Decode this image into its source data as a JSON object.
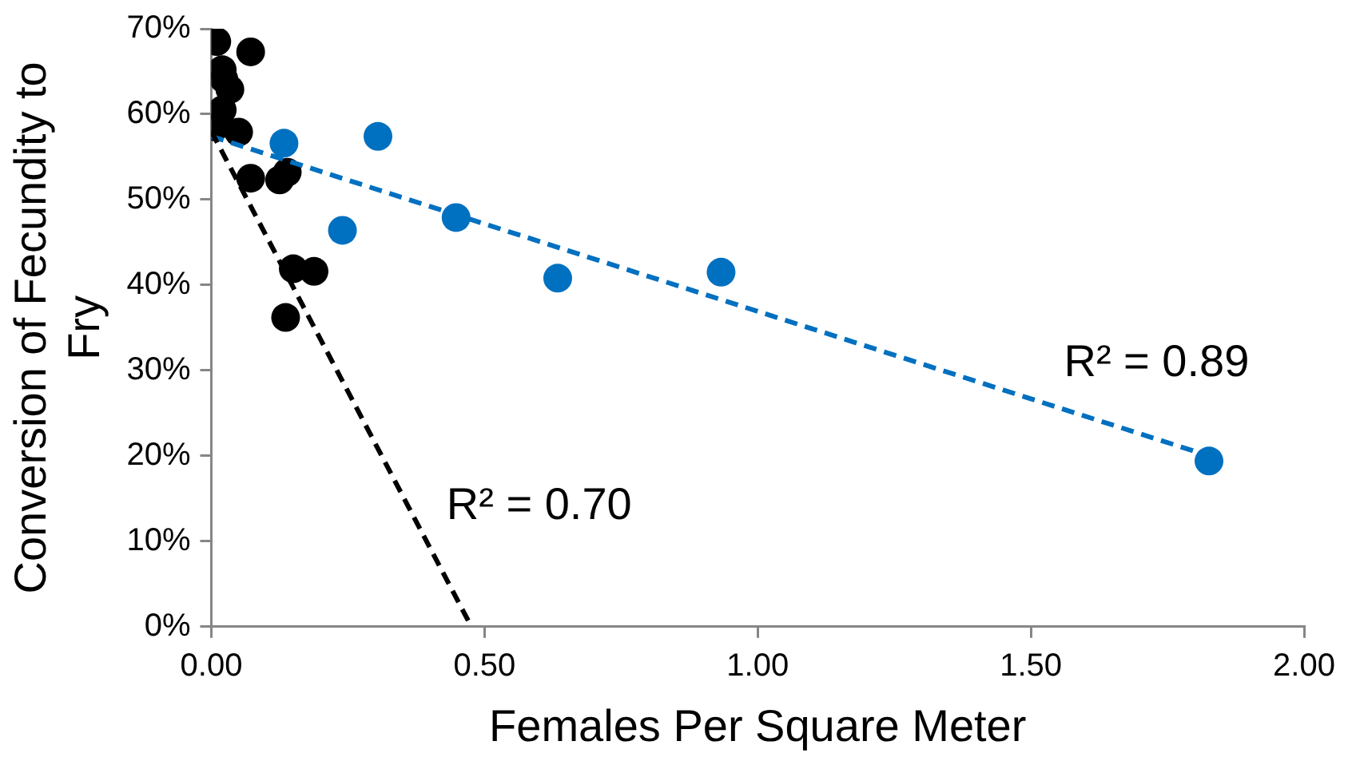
{
  "chart_data": {
    "type": "scatter",
    "xlabel": "Females Per Square Meter",
    "ylabel": "Conversion of Fecundity to Fry",
    "marker": "circle",
    "xlim": [
      0,
      2
    ],
    "xticks": [
      {
        "value": 0,
        "label": "0.00"
      },
      {
        "value": 0.5,
        "label": "0.50"
      },
      {
        "value": 1,
        "label": "1.00"
      },
      {
        "value": 1.5,
        "label": "1.50"
      },
      {
        "value": 2,
        "label": "2.00"
      }
    ],
    "ylim": [
      0,
      70
    ],
    "yticks": [
      {
        "value": 0,
        "label": "0%"
      },
      {
        "value": 10,
        "label": "10%"
      },
      {
        "value": 20,
        "label": "20%"
      },
      {
        "value": 30,
        "label": "30%"
      },
      {
        "value": 40,
        "label": "40%"
      },
      {
        "value": 50,
        "label": "50%"
      },
      {
        "value": 60,
        "label": "60%"
      },
      {
        "value": 70,
        "label": "70%"
      }
    ],
    "series": [
      {
        "type": "scatter",
        "color": "#000000",
        "x": [
          0.01,
          0.072,
          0.02,
          0.023,
          0.034,
          0.02,
          0.007,
          0.05,
          0.072,
          0.125,
          0.139,
          0.15,
          0.188,
          0.136
        ],
        "values": [
          68.5,
          67.3,
          65.2,
          64.1,
          62.9,
          60.5,
          58.5,
          57.9,
          52.5,
          52.3,
          53.2,
          41.9,
          41.6,
          36.2
        ]
      },
      {
        "type": "scatter",
        "color": "#0070c0",
        "x": [
          0.133,
          0.305,
          0.24,
          0.448,
          0.634,
          0.933,
          1.826
        ],
        "values": [
          56.6,
          57.4,
          46.4,
          47.9,
          40.8,
          41.5,
          19.4
        ]
      },
      {
        "type": "line",
        "color": "#000000",
        "line_style": "dashed",
        "marker": "none",
        "x": [
          0,
          0.476
        ],
        "values": [
          58,
          0
        ]
      },
      {
        "type": "line",
        "color": "#0070c0",
        "line_style": "dashed",
        "marker": "none",
        "x": [
          0,
          1.826
        ],
        "values": [
          57.4,
          20
        ]
      }
    ],
    "annotations": [
      "R² = 0.89",
      "R² = 0.70"
    ]
  }
}
